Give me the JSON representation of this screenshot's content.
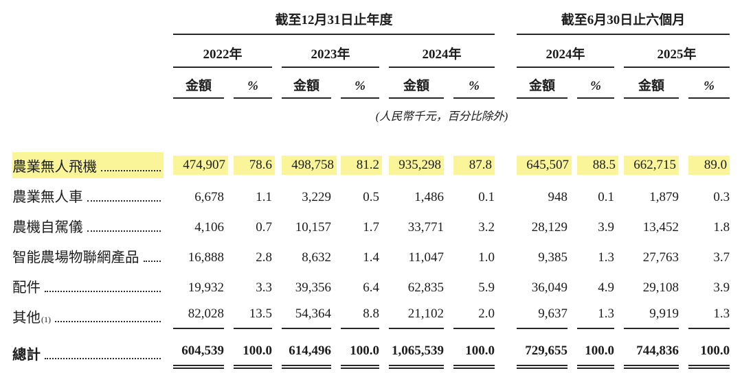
{
  "colors": {
    "highlight": "#FAF599",
    "rule": "#262626",
    "text": "#1C1C1C"
  },
  "table": {
    "sections": [
      {
        "label": "截至12月31日止年度",
        "years": [
          "2022年",
          "2023年",
          "2024年"
        ]
      },
      {
        "label": "截至6月30日止六個月",
        "years": [
          "2024年",
          "2025年"
        ]
      }
    ],
    "sub_headers": {
      "amount": "金額",
      "percent": "%"
    },
    "note": "(人民幣千元，百分比除外)",
    "rows": [
      {
        "label": "農業無人飛機",
        "sup": "",
        "highlight": true,
        "values": [
          "474,907",
          "78.6",
          "498,758",
          "81.2",
          "935,298",
          "87.8",
          "645,507",
          "88.5",
          "662,715",
          "89.0"
        ]
      },
      {
        "label": "農業無人車",
        "sup": "",
        "values": [
          "6,678",
          "1.1",
          "3,229",
          "0.5",
          "1,486",
          "0.1",
          "948",
          "0.1",
          "1,879",
          "0.3"
        ]
      },
      {
        "label": "農機自駕儀",
        "sup": "",
        "values": [
          "4,106",
          "0.7",
          "10,157",
          "1.7",
          "33,771",
          "3.2",
          "28,129",
          "3.9",
          "13,452",
          "1.8"
        ]
      },
      {
        "label": "智能農場物聯網產品",
        "sup": "",
        "values": [
          "16,888",
          "2.8",
          "8,632",
          "1.4",
          "11,047",
          "1.0",
          "9,385",
          "1.3",
          "27,763",
          "3.7"
        ]
      },
      {
        "label": "配件",
        "sup": "",
        "values": [
          "19,932",
          "3.3",
          "39,356",
          "6.4",
          "62,835",
          "5.9",
          "36,049",
          "4.9",
          "29,108",
          "3.9"
        ]
      },
      {
        "label": "其他",
        "sup": "(1)",
        "pre_total": true,
        "values": [
          "82,028",
          "13.5",
          "54,364",
          "8.8",
          "21,102",
          "2.0",
          "9,637",
          "1.3",
          "9,919",
          "1.3"
        ]
      }
    ],
    "total": {
      "label": "總計",
      "values": [
        "604,539",
        "100.0",
        "614,496",
        "100.0",
        "1,065,539",
        "100.0",
        "729,655",
        "100.0",
        "744,836",
        "100.0"
      ]
    }
  }
}
